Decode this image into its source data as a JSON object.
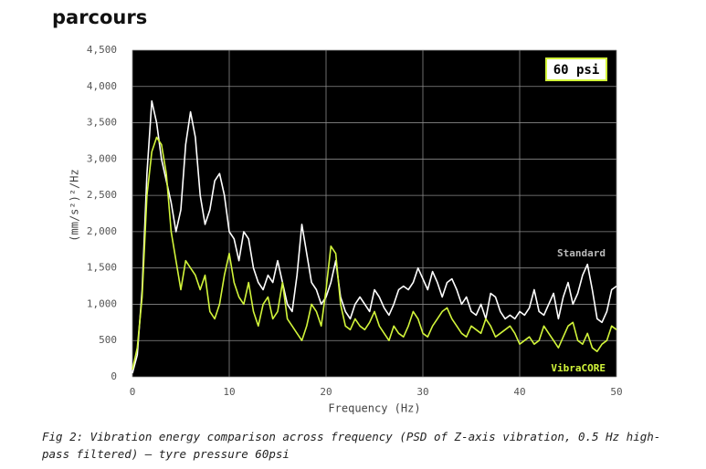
{
  "logo": "parcours",
  "chart_data": {
    "type": "line",
    "xlabel": "Frequency (Hz)",
    "ylabel": "(mm/s²)²/Hz",
    "annotation": "60 psi",
    "caption": "Fig 2: Vibration energy comparison across frequency (PSD of Z-axis vibration, 0.5 Hz high-pass filtered) – tyre pressure 60psi",
    "xlim": [
      0,
      50
    ],
    "ylim": [
      0,
      4500
    ],
    "xticks": [
      0,
      10,
      20,
      30,
      40,
      50
    ],
    "yticks": [
      0,
      500,
      {
        "value": 1000,
        "label": "1,000"
      },
      {
        "value": 1500,
        "label": "1,500"
      },
      {
        "value": 2000,
        "label": "2,000"
      },
      {
        "value": 2500,
        "label": "2,500"
      },
      {
        "value": 3000,
        "label": "3,000"
      },
      {
        "value": 3500,
        "label": "3,500"
      },
      {
        "value": 4000,
        "label": "4,000"
      },
      {
        "value": 4500,
        "label": "4,500"
      }
    ],
    "grid": true,
    "x": [
      0,
      0.5,
      1,
      1.5,
      2,
      2.5,
      3,
      3.5,
      4,
      4.5,
      5,
      5.5,
      6,
      6.5,
      7,
      7.5,
      8,
      8.5,
      9,
      9.5,
      10,
      10.5,
      11,
      11.5,
      12,
      12.5,
      13,
      13.5,
      14,
      14.5,
      15,
      15.5,
      16,
      16.5,
      17,
      17.5,
      18,
      18.5,
      19,
      19.5,
      20,
      20.5,
      21,
      21.5,
      22,
      22.5,
      23,
      23.5,
      24,
      24.5,
      25,
      25.5,
      26,
      26.5,
      27,
      27.5,
      28,
      28.5,
      29,
      29.5,
      30,
      30.5,
      31,
      31.5,
      32,
      32.5,
      33,
      33.5,
      34,
      34.5,
      35,
      35.5,
      36,
      36.5,
      37,
      37.5,
      38,
      38.5,
      39,
      39.5,
      40,
      40.5,
      41,
      41.5,
      42,
      42.5,
      43,
      43.5,
      44,
      44.5,
      45,
      45.5,
      46,
      46.5,
      47,
      47.5,
      48,
      48.5,
      49,
      49.5,
      50
    ],
    "series": [
      {
        "name": "Standard",
        "color": "#ffffff",
        "values": [
          50,
          300,
          1200,
          2800,
          3800,
          3500,
          3000,
          2700,
          2400,
          2000,
          2300,
          3200,
          3650,
          3300,
          2500,
          2100,
          2300,
          2700,
          2800,
          2500,
          2000,
          1900,
          1600,
          2000,
          1900,
          1500,
          1300,
          1200,
          1400,
          1300,
          1600,
          1300,
          1000,
          900,
          1400,
          2100,
          1700,
          1300,
          1200,
          1000,
          1100,
          1300,
          1600,
          1100,
          900,
          800,
          1000,
          1100,
          1000,
          900,
          1200,
          1100,
          950,
          850,
          1000,
          1200,
          1250,
          1200,
          1300,
          1500,
          1350,
          1200,
          1450,
          1300,
          1100,
          1300,
          1350,
          1200,
          1000,
          1100,
          900,
          850,
          1000,
          800,
          1150,
          1100,
          900,
          800,
          850,
          800,
          900,
          850,
          950,
          1200,
          900,
          850,
          1000,
          1150,
          800,
          1100,
          1300,
          1000,
          1150,
          1400,
          1550,
          1200,
          800,
          750,
          900,
          1200,
          1250
        ]
      },
      {
        "name": "VibraCORE",
        "color": "#d2f53a",
        "values": [
          100,
          400,
          1100,
          2500,
          3100,
          3300,
          3200,
          2800,
          2000,
          1600,
          1200,
          1600,
          1500,
          1400,
          1200,
          1400,
          900,
          800,
          1000,
          1400,
          1700,
          1300,
          1100,
          1000,
          1300,
          900,
          700,
          1000,
          1100,
          800,
          900,
          1300,
          800,
          700,
          600,
          500,
          700,
          1000,
          900,
          700,
          1200,
          1800,
          1700,
          1000,
          700,
          650,
          800,
          700,
          650,
          750,
          900,
          700,
          600,
          500,
          700,
          600,
          550,
          700,
          900,
          800,
          600,
          550,
          700,
          800,
          900,
          950,
          800,
          700,
          600,
          550,
          700,
          650,
          600,
          800,
          700,
          550,
          600,
          650,
          700,
          600,
          450,
          500,
          550,
          450,
          500,
          700,
          600,
          500,
          400,
          550,
          700,
          750,
          500,
          450,
          600,
          400,
          350,
          450,
          500,
          700,
          650
        ]
      }
    ]
  }
}
